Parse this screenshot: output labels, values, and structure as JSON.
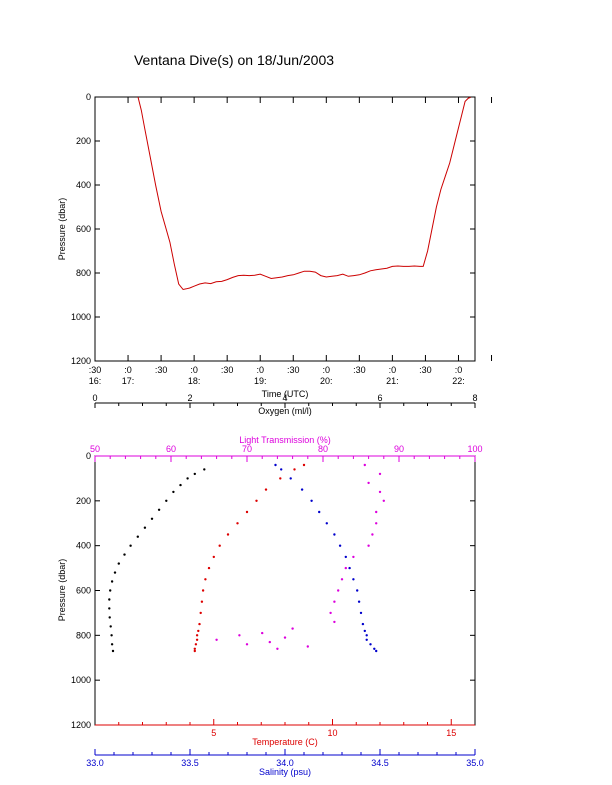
{
  "title": "Ventana Dive(s) on 18/Jun/2003",
  "colors": {
    "axis": "#000000",
    "time_series": "#cc0000",
    "oxygen": "#000000",
    "light_transmission": "#dd00dd",
    "temperature": "#dd0000",
    "salinity": "#0000cc"
  },
  "chart_data": [
    {
      "type": "line",
      "title": "Ventana Dive(s) on 18/Jun/2003",
      "xlabel": "Time (UTC)",
      "ylabel": "Pressure (dbar)",
      "ylim": [
        1200,
        0
      ],
      "y_ticks": [
        "0",
        "200",
        "400",
        "600",
        "800",
        "1000",
        "1200"
      ],
      "x_ticks_minutes": [
        -30,
        0,
        30,
        60,
        90,
        120,
        150,
        180,
        210,
        240,
        270,
        300,
        330
      ],
      "x_ticks_top": [
        ":30",
        ":0",
        ":30",
        ":0",
        ":30",
        ":0",
        ":30",
        ":0",
        ":30",
        ":0",
        ":30",
        ":0",
        ""
      ],
      "x_ticks_bottom": [
        "16:",
        "17:",
        "",
        "18:",
        "",
        "19:",
        "",
        "20:",
        "",
        "21:",
        "",
        "22:",
        ""
      ],
      "series": [
        {
          "time_minutes": [
            9,
            12,
            15,
            20,
            25,
            30,
            34,
            38,
            42,
            46,
            50,
            53,
            56,
            60,
            65,
            70,
            75,
            80,
            85,
            90,
            95,
            100,
            105,
            110,
            115,
            120,
            125,
            130,
            135,
            140,
            145,
            150,
            155,
            160,
            165,
            170,
            175,
            180,
            185,
            190,
            195,
            200,
            205,
            210,
            215,
            220,
            225,
            230,
            235,
            240,
            245,
            250,
            255,
            260,
            265,
            268,
            272,
            276,
            280,
            284,
            288,
            292,
            296,
            300,
            303,
            306,
            309,
            311
          ],
          "pressure": [
            0,
            60,
            140,
            270,
            400,
            520,
            590,
            660,
            760,
            850,
            875,
            872,
            868,
            860,
            850,
            845,
            848,
            840,
            838,
            830,
            820,
            812,
            810,
            812,
            810,
            805,
            815,
            825,
            822,
            818,
            812,
            808,
            800,
            792,
            792,
            796,
            812,
            818,
            815,
            812,
            805,
            815,
            812,
            808,
            800,
            790,
            785,
            782,
            778,
            770,
            768,
            770,
            770,
            768,
            770,
            770,
            700,
            600,
            500,
            420,
            360,
            300,
            220,
            140,
            80,
            20,
            5,
            2
          ]
        }
      ]
    },
    {
      "type": "scatter",
      "ylabel": "Pressure (dbar)",
      "ylim": [
        1200,
        0
      ],
      "y_ticks": [
        "0",
        "200",
        "400",
        "600",
        "800",
        "1000",
        "1200"
      ],
      "axes": {
        "oxygen": {
          "label": "Oxygen (ml/l)",
          "range": [
            0,
            8
          ],
          "ticks": [
            "0",
            "2",
            "4",
            "6",
            "8"
          ]
        },
        "light_transmission": {
          "label": "Light Transmission (%)",
          "range": [
            50,
            100
          ],
          "ticks": [
            "50",
            "60",
            "70",
            "80",
            "90",
            "100"
          ]
        },
        "temperature": {
          "label": "Temperature (C)",
          "range": [
            0,
            16
          ],
          "ticks": [
            "5",
            "10",
            "15"
          ]
        },
        "salinity": {
          "label": "Salinity (psu)",
          "range": [
            33.0,
            35.0
          ],
          "ticks": [
            "33.0",
            "33.5",
            "34.0",
            "34.5",
            "35.0"
          ]
        }
      },
      "series": [
        {
          "name": "Oxygen",
          "pressure": [
            60,
            80,
            100,
            130,
            160,
            200,
            240,
            280,
            320,
            360,
            400,
            440,
            480,
            520,
            560,
            600,
            640,
            680,
            720,
            760,
            800,
            840,
            870
          ],
          "oxygen": [
            2.3,
            2.1,
            1.95,
            1.8,
            1.65,
            1.5,
            1.35,
            1.2,
            1.05,
            0.9,
            0.75,
            0.62,
            0.5,
            0.42,
            0.36,
            0.32,
            0.3,
            0.3,
            0.31,
            0.33,
            0.35,
            0.36,
            0.38
          ]
        },
        {
          "name": "Temperature",
          "pressure": [
            40,
            60,
            100,
            150,
            200,
            250,
            300,
            350,
            400,
            450,
            500,
            550,
            600,
            650,
            700,
            750,
            780,
            800,
            820,
            840,
            860,
            870
          ],
          "temperature": [
            8.8,
            8.4,
            7.8,
            7.2,
            6.8,
            6.4,
            6.0,
            5.6,
            5.25,
            5.0,
            4.8,
            4.65,
            4.55,
            4.5,
            4.45,
            4.4,
            4.35,
            4.3,
            4.3,
            4.25,
            4.2,
            4.2
          ]
        },
        {
          "name": "Salinity",
          "pressure": [
            40,
            60,
            100,
            150,
            200,
            250,
            300,
            350,
            400,
            450,
            500,
            550,
            600,
            650,
            700,
            750,
            780,
            800,
            820,
            840,
            860,
            870
          ],
          "salinity": [
            33.95,
            33.98,
            34.03,
            34.09,
            34.14,
            34.18,
            34.22,
            34.26,
            34.29,
            34.32,
            34.34,
            34.36,
            34.38,
            34.39,
            34.4,
            34.41,
            34.42,
            34.43,
            34.43,
            34.45,
            34.47,
            34.48
          ]
        },
        {
          "name": "Light Transmission",
          "pressure": [
            40,
            80,
            120,
            160,
            200,
            250,
            300,
            350,
            400,
            450,
            500,
            550,
            600,
            650,
            700,
            740,
            770,
            790,
            800,
            810,
            820,
            830,
            840,
            850,
            860
          ],
          "light_transmission": [
            85.5,
            87.5,
            86.0,
            87.5,
            88.0,
            87.0,
            87.0,
            86.5,
            86.0,
            84.0,
            83.0,
            82.5,
            82.0,
            81.5,
            81.0,
            81.5,
            76.0,
            72.0,
            69.0,
            75.0,
            66.0,
            73.0,
            70.0,
            78.0,
            74.0
          ]
        }
      ]
    }
  ]
}
